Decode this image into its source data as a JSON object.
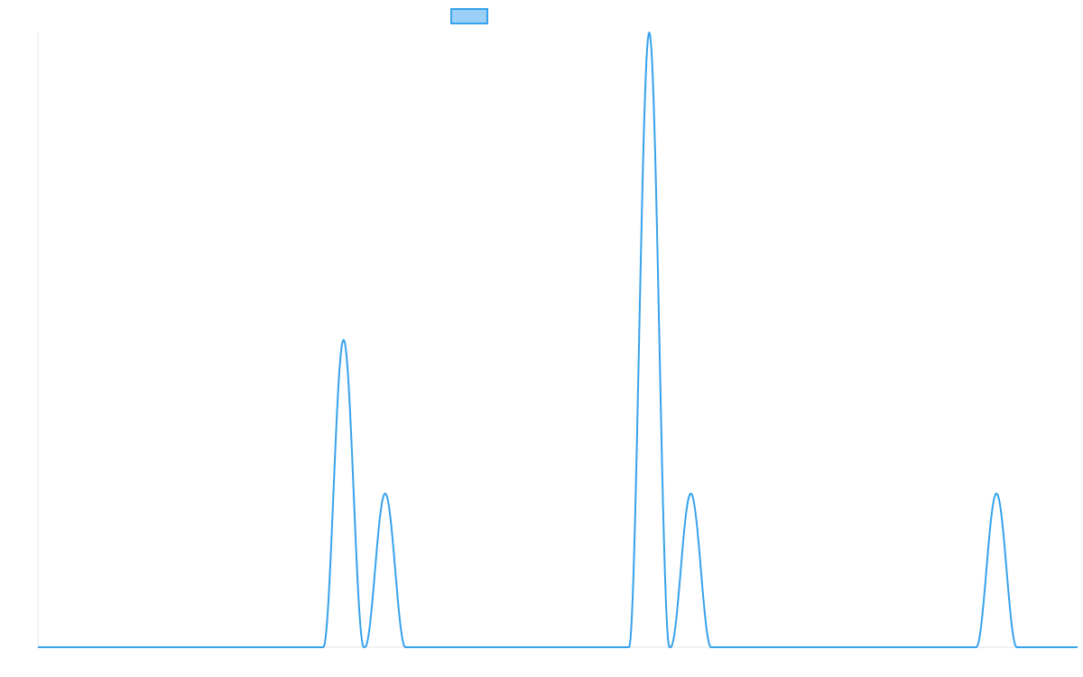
{
  "colors": {
    "series_line": "#36a2eb",
    "series_fill": "#9ad0f5",
    "axis": "#e5e5e5"
  },
  "chart_data": {
    "type": "line",
    "title": "",
    "xlabel": "",
    "ylabel": "",
    "grid": false,
    "legend": "top-center",
    "xlim": [
      0,
      1000
    ],
    "ylim": [
      0,
      1
    ],
    "series": [
      {
        "name": "",
        "peaks": [
          {
            "x": 294,
            "height": 0.5,
            "halfwidth": 19.5
          },
          {
            "x": 334,
            "height": 0.25,
            "halfwidth": 19.5
          },
          {
            "x": 588,
            "height": 1.0,
            "halfwidth": 19.5
          },
          {
            "x": 628,
            "height": 0.25,
            "halfwidth": 19.5
          },
          {
            "x": 922,
            "height": 0.25,
            "halfwidth": 19.5
          }
        ]
      }
    ]
  }
}
